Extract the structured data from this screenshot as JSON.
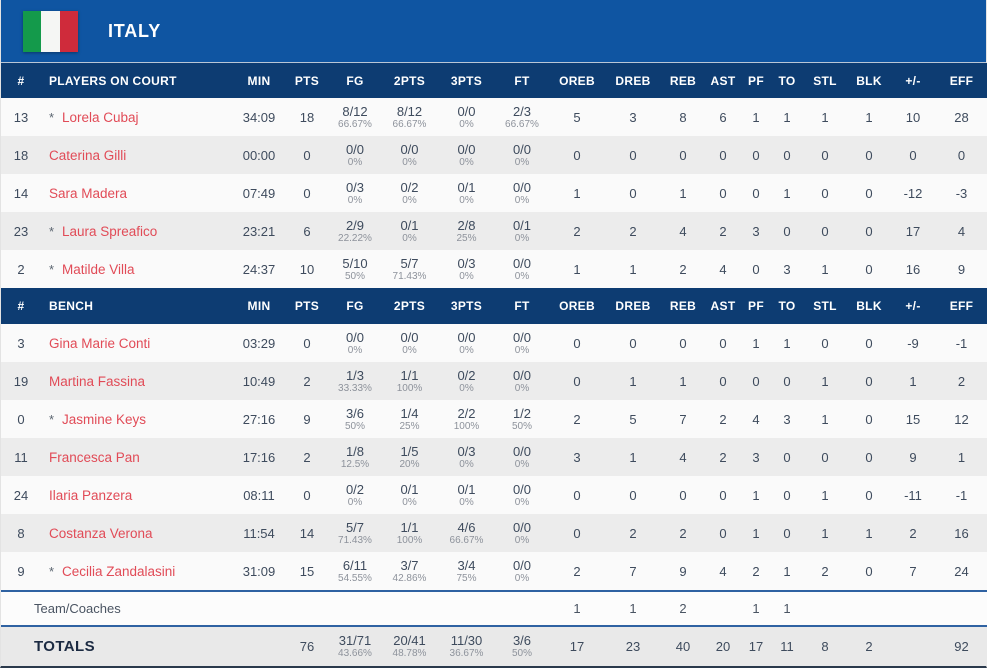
{
  "team": {
    "name": "ITALY"
  },
  "colors": {
    "top_bar_blue": "#0f55a2",
    "header_navy": "#0d3c72",
    "player_name_red": "#e14b57",
    "stat_text": "#3e4b5d",
    "row_light": "#fafafa",
    "row_gray": "#ececec",
    "divider_blue": "#2f62a2",
    "flag_green": "#149a4b",
    "flag_red": "#cf2b3b"
  },
  "header_on_court": [
    "#",
    "PLAYERS ON COURT",
    "MIN",
    "PTS",
    "FG",
    "2PTS",
    "3PTS",
    "FT",
    "OREB",
    "DREB",
    "REB",
    "AST",
    "PF",
    "TO",
    "STL",
    "BLK",
    "+/-",
    "EFF"
  ],
  "header_bench": [
    "#",
    "BENCH",
    "MIN",
    "PTS",
    "FG",
    "2PTS",
    "3PTS",
    "FT",
    "OREB",
    "DREB",
    "REB",
    "AST",
    "PF",
    "TO",
    "STL",
    "BLK",
    "+/-",
    "EFF"
  ],
  "on_court": [
    {
      "num": "13",
      "starter": "*",
      "name": "Lorela Cubaj",
      "min": "34:09",
      "pts": "18",
      "fg": "8/12",
      "fg_pct": "66.67%",
      "pts2": "8/12",
      "pts2_pct": "66.67%",
      "pts3": "0/0",
      "pts3_pct": "0%",
      "ft": "2/3",
      "ft_pct": "66.67%",
      "oreb": "5",
      "dreb": "3",
      "reb": "8",
      "ast": "6",
      "pf": "1",
      "to": "1",
      "stl": "1",
      "blk": "1",
      "plus_minus": "10",
      "eff": "28"
    },
    {
      "num": "18",
      "starter": "",
      "name": "Caterina Gilli",
      "min": "00:00",
      "pts": "0",
      "fg": "0/0",
      "fg_pct": "0%",
      "pts2": "0/0",
      "pts2_pct": "0%",
      "pts3": "0/0",
      "pts3_pct": "0%",
      "ft": "0/0",
      "ft_pct": "0%",
      "oreb": "0",
      "dreb": "0",
      "reb": "0",
      "ast": "0",
      "pf": "0",
      "to": "0",
      "stl": "0",
      "blk": "0",
      "plus_minus": "0",
      "eff": "0"
    },
    {
      "num": "14",
      "starter": "",
      "name": "Sara Madera",
      "min": "07:49",
      "pts": "0",
      "fg": "0/3",
      "fg_pct": "0%",
      "pts2": "0/2",
      "pts2_pct": "0%",
      "pts3": "0/1",
      "pts3_pct": "0%",
      "ft": "0/0",
      "ft_pct": "0%",
      "oreb": "1",
      "dreb": "0",
      "reb": "1",
      "ast": "0",
      "pf": "0",
      "to": "1",
      "stl": "0",
      "blk": "0",
      "plus_minus": "-12",
      "eff": "-3"
    },
    {
      "num": "23",
      "starter": "*",
      "name": "Laura Spreafico",
      "min": "23:21",
      "pts": "6",
      "fg": "2/9",
      "fg_pct": "22.22%",
      "pts2": "0/1",
      "pts2_pct": "0%",
      "pts3": "2/8",
      "pts3_pct": "25%",
      "ft": "0/1",
      "ft_pct": "0%",
      "oreb": "2",
      "dreb": "2",
      "reb": "4",
      "ast": "2",
      "pf": "3",
      "to": "0",
      "stl": "0",
      "blk": "0",
      "plus_minus": "17",
      "eff": "4"
    },
    {
      "num": "2",
      "starter": "*",
      "name": "Matilde Villa",
      "min": "24:37",
      "pts": "10",
      "fg": "5/10",
      "fg_pct": "50%",
      "pts2": "5/7",
      "pts2_pct": "71.43%",
      "pts3": "0/3",
      "pts3_pct": "0%",
      "ft": "0/0",
      "ft_pct": "0%",
      "oreb": "1",
      "dreb": "1",
      "reb": "2",
      "ast": "4",
      "pf": "0",
      "to": "3",
      "stl": "1",
      "blk": "0",
      "plus_minus": "16",
      "eff": "9"
    }
  ],
  "bench": [
    {
      "num": "3",
      "starter": "",
      "name": "Gina Marie Conti",
      "min": "03:29",
      "pts": "0",
      "fg": "0/0",
      "fg_pct": "0%",
      "pts2": "0/0",
      "pts2_pct": "0%",
      "pts3": "0/0",
      "pts3_pct": "0%",
      "ft": "0/0",
      "ft_pct": "0%",
      "oreb": "0",
      "dreb": "0",
      "reb": "0",
      "ast": "0",
      "pf": "1",
      "to": "1",
      "stl": "0",
      "blk": "0",
      "plus_minus": "-9",
      "eff": "-1"
    },
    {
      "num": "19",
      "starter": "",
      "name": "Martina Fassina",
      "min": "10:49",
      "pts": "2",
      "fg": "1/3",
      "fg_pct": "33.33%",
      "pts2": "1/1",
      "pts2_pct": "100%",
      "pts3": "0/2",
      "pts3_pct": "0%",
      "ft": "0/0",
      "ft_pct": "0%",
      "oreb": "0",
      "dreb": "1",
      "reb": "1",
      "ast": "0",
      "pf": "0",
      "to": "0",
      "stl": "1",
      "blk": "0",
      "plus_minus": "1",
      "eff": "2"
    },
    {
      "num": "0",
      "starter": "*",
      "name": "Jasmine Keys",
      "min": "27:16",
      "pts": "9",
      "fg": "3/6",
      "fg_pct": "50%",
      "pts2": "1/4",
      "pts2_pct": "25%",
      "pts3": "2/2",
      "pts3_pct": "100%",
      "ft": "1/2",
      "ft_pct": "50%",
      "oreb": "2",
      "dreb": "5",
      "reb": "7",
      "ast": "2",
      "pf": "4",
      "to": "3",
      "stl": "1",
      "blk": "0",
      "plus_minus": "15",
      "eff": "12"
    },
    {
      "num": "11",
      "starter": "",
      "name": "Francesca Pan",
      "min": "17:16",
      "pts": "2",
      "fg": "1/8",
      "fg_pct": "12.5%",
      "pts2": "1/5",
      "pts2_pct": "20%",
      "pts3": "0/3",
      "pts3_pct": "0%",
      "ft": "0/0",
      "ft_pct": "0%",
      "oreb": "3",
      "dreb": "1",
      "reb": "4",
      "ast": "2",
      "pf": "3",
      "to": "0",
      "stl": "0",
      "blk": "0",
      "plus_minus": "9",
      "eff": "1"
    },
    {
      "num": "24",
      "starter": "",
      "name": "Ilaria Panzera",
      "min": "08:11",
      "pts": "0",
      "fg": "0/2",
      "fg_pct": "0%",
      "pts2": "0/1",
      "pts2_pct": "0%",
      "pts3": "0/1",
      "pts3_pct": "0%",
      "ft": "0/0",
      "ft_pct": "0%",
      "oreb": "0",
      "dreb": "0",
      "reb": "0",
      "ast": "0",
      "pf": "1",
      "to": "0",
      "stl": "1",
      "blk": "0",
      "plus_minus": "-11",
      "eff": "-1"
    },
    {
      "num": "8",
      "starter": "",
      "name": "Costanza Verona",
      "min": "11:54",
      "pts": "14",
      "fg": "5/7",
      "fg_pct": "71.43%",
      "pts2": "1/1",
      "pts2_pct": "100%",
      "pts3": "4/6",
      "pts3_pct": "66.67%",
      "ft": "0/0",
      "ft_pct": "0%",
      "oreb": "0",
      "dreb": "2",
      "reb": "2",
      "ast": "0",
      "pf": "1",
      "to": "0",
      "stl": "1",
      "blk": "1",
      "plus_minus": "2",
      "eff": "16"
    },
    {
      "num": "9",
      "starter": "*",
      "name": "Cecilia Zandalasini",
      "min": "31:09",
      "pts": "15",
      "fg": "6/11",
      "fg_pct": "54.55%",
      "pts2": "3/7",
      "pts2_pct": "42.86%",
      "pts3": "3/4",
      "pts3_pct": "75%",
      "ft": "0/0",
      "ft_pct": "0%",
      "oreb": "2",
      "dreb": "7",
      "reb": "9",
      "ast": "4",
      "pf": "2",
      "to": "1",
      "stl": "2",
      "blk": "0",
      "plus_minus": "7",
      "eff": "24"
    }
  ],
  "footer": {
    "team_coaches": {
      "label": "Team/Coaches",
      "min": "",
      "pts": "",
      "fg": "",
      "fg_pct": "",
      "pts2": "",
      "pts2_pct": "",
      "pts3": "",
      "pts3_pct": "",
      "ft": "",
      "ft_pct": "",
      "oreb": "1",
      "dreb": "1",
      "reb": "2",
      "ast": "",
      "pf": "1",
      "to": "1",
      "stl": "",
      "blk": "",
      "plus_minus": "",
      "eff": ""
    },
    "totals": {
      "label": "TOTALS",
      "min": "",
      "pts": "76",
      "fg": "31/71",
      "fg_pct": "43.66%",
      "pts2": "20/41",
      "pts2_pct": "48.78%",
      "pts3": "11/30",
      "pts3_pct": "36.67%",
      "ft": "3/6",
      "ft_pct": "50%",
      "oreb": "17",
      "dreb": "23",
      "reb": "40",
      "ast": "20",
      "pf": "17",
      "to": "11",
      "stl": "8",
      "blk": "2",
      "plus_minus": "",
      "eff": "92"
    }
  }
}
